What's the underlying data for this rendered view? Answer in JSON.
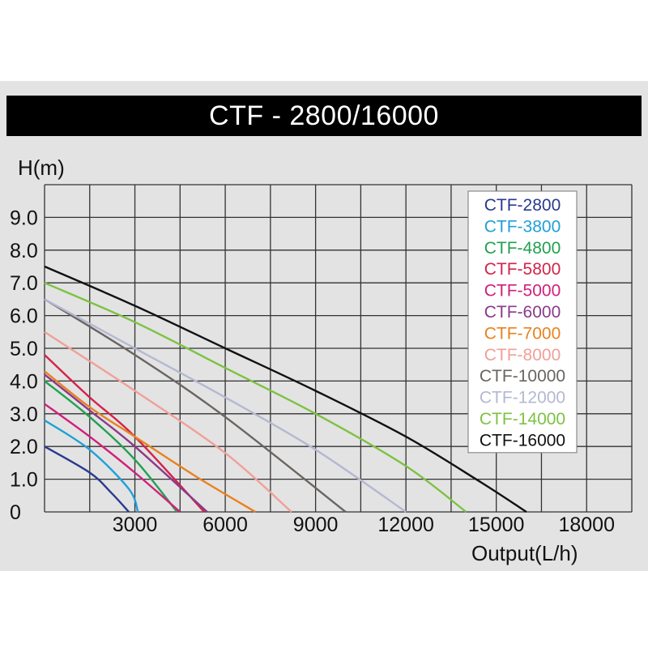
{
  "chart_data": {
    "type": "line",
    "title": "CTF - 2800/16000",
    "xlabel": "Output(L/h)",
    "ylabel": "H(m)",
    "xlim": [
      0,
      19500
    ],
    "ylim": [
      0,
      10
    ],
    "x_tick_labels": [
      "3000",
      "6000",
      "9000",
      "12000",
      "15000",
      "18000"
    ],
    "x_tick_values": [
      3000,
      6000,
      9000,
      12000,
      15000,
      18000
    ],
    "y_tick_labels": [
      "0",
      "1.0",
      "2.0",
      "3.0",
      "4.0",
      "5.0",
      "6.0",
      "7.0",
      "8.0",
      "9.0"
    ],
    "y_tick_values": [
      0,
      1,
      2,
      3,
      4,
      5,
      6,
      7,
      8,
      9
    ],
    "grid": true,
    "legend_position": "top-right",
    "series": [
      {
        "name": "CTF-2800",
        "color": "#2b3a8c",
        "x": [
          0,
          1500,
          2200,
          2800
        ],
        "y": [
          2.0,
          1.2,
          0.6,
          0
        ]
      },
      {
        "name": "CTF-3800",
        "color": "#1fa0d8",
        "x": [
          0,
          1500,
          2800,
          3100
        ],
        "y": [
          2.8,
          1.9,
          0.7,
          0
        ]
      },
      {
        "name": "CTF-4800",
        "color": "#22a050",
        "x": [
          0,
          1500,
          3000,
          4400
        ],
        "y": [
          4.0,
          2.9,
          1.6,
          0
        ]
      },
      {
        "name": "CTF-5800",
        "color": "#d4234a",
        "x": [
          0,
          1500,
          3000,
          5300
        ],
        "y": [
          4.8,
          3.5,
          2.3,
          0
        ]
      },
      {
        "name": "CTF-5000",
        "color": "#d0207a",
        "x": [
          0,
          1500,
          3000,
          4500
        ],
        "y": [
          3.3,
          2.3,
          1.2,
          0
        ]
      },
      {
        "name": "CTF-6000",
        "color": "#8a3a8a",
        "x": [
          0,
          1500,
          3000,
          5400
        ],
        "y": [
          4.2,
          3.1,
          2.0,
          0
        ]
      },
      {
        "name": "CTF-7000",
        "color": "#e8821e",
        "x": [
          0,
          1500,
          3000,
          5000,
          7000
        ],
        "y": [
          4.3,
          3.2,
          2.3,
          1.1,
          0
        ]
      },
      {
        "name": "CTF-8000",
        "color": "#f0a098",
        "x": [
          0,
          3000,
          6000,
          8200
        ],
        "y": [
          5.5,
          3.7,
          1.8,
          0
        ]
      },
      {
        "name": "CTF-10000",
        "color": "#6a6560",
        "x": [
          0,
          3000,
          6000,
          10000
        ],
        "y": [
          6.5,
          4.8,
          2.9,
          0
        ]
      },
      {
        "name": "CTF-12000",
        "color": "#b4b8d2",
        "x": [
          0,
          3000,
          6000,
          9000,
          12000
        ],
        "y": [
          6.5,
          5.0,
          3.5,
          1.9,
          0
        ]
      },
      {
        "name": "CTF-14000",
        "color": "#7dc242",
        "x": [
          0,
          3000,
          6000,
          9000,
          12000,
          14000
        ],
        "y": [
          7.0,
          5.8,
          4.4,
          3.0,
          1.4,
          0
        ]
      },
      {
        "name": "CTF-16000",
        "color": "#111111",
        "x": [
          0,
          3000,
          6000,
          9000,
          12000,
          14500,
          16000
        ],
        "y": [
          7.5,
          6.3,
          5.0,
          3.7,
          2.3,
          0.9,
          0
        ]
      }
    ]
  }
}
